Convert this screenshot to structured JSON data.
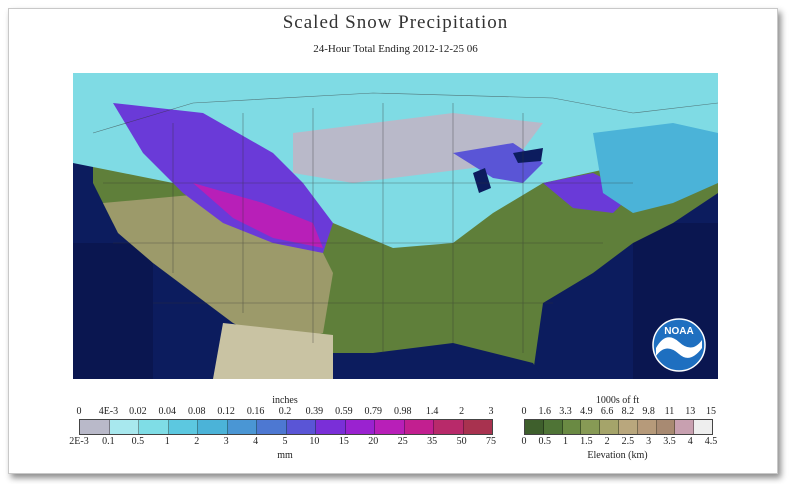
{
  "header": {
    "title": "Scaled Snow Precipitation",
    "subtitle": "24-Hour Total Ending 2012-12-25 06"
  },
  "logo": {
    "text": "NOAA",
    "icon": "noaa-logo"
  },
  "precip_legend": {
    "top_unit": "inches",
    "bottom_unit": "mm",
    "top_ticks": [
      "0",
      "4E-3",
      "0.02",
      "0.04",
      "0.08",
      "0.12",
      "0.16",
      "0.2",
      "0.39",
      "0.59",
      "0.79",
      "0.98",
      "1.4",
      "2",
      "3"
    ],
    "bottom_ticks": [
      "2E-3",
      "0.1",
      "0.5",
      "1",
      "2",
      "3",
      "4",
      "5",
      "10",
      "15",
      "20",
      "25",
      "35",
      "50",
      "75"
    ],
    "colors": [
      "#b9b9c9",
      "#a8e8ee",
      "#7fdde6",
      "#5cc8e0",
      "#4bb3d8",
      "#4a96d4",
      "#4d78d2",
      "#5a55d6",
      "#7a2fd8",
      "#9a22d0",
      "#b81fb8",
      "#c21f90",
      "#b82a6a",
      "#a8324f"
    ]
  },
  "elevation_legend": {
    "top_unit": "1000s of ft",
    "bottom_unit": "Elevation (km)",
    "top_ticks": [
      "0",
      "1.6",
      "3.3",
      "4.9",
      "6.6",
      "8.2",
      "9.8",
      "11",
      "13",
      "15"
    ],
    "bottom_ticks": [
      "0",
      "0.5",
      "1",
      "1.5",
      "2",
      "2.5",
      "3",
      "3.5",
      "4",
      "4.5"
    ],
    "colors": [
      "#3e5f2c",
      "#4f7436",
      "#6a8a43",
      "#879a55",
      "#a5a46a",
      "#b9a77d",
      "#b69a7a",
      "#a88a72",
      "#c8a0b0",
      "#eeeeee"
    ]
  }
}
